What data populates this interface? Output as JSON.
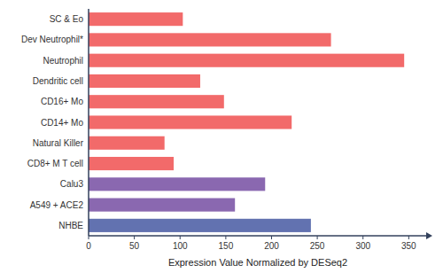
{
  "chart_data": {
    "type": "bar",
    "orientation": "horizontal",
    "categories": [
      "NHBE",
      "A549 + ACE2",
      "Calu3",
      "CD8+ M T cell",
      "Natural Killer",
      "CD14+ Mo",
      "CD16+ Mo",
      "Dendritic cell",
      "Neutrophil",
      "Dev Neutrophil*",
      "SC & Eo"
    ],
    "values": [
      243,
      160,
      193,
      93,
      83,
      222,
      148,
      122,
      345,
      265,
      103
    ],
    "colors": [
      "#6272b0",
      "#8a68b0",
      "#8a68b0",
      "#f26a6a",
      "#f26a6a",
      "#f26a6a",
      "#f26a6a",
      "#f26a6a",
      "#f26a6a",
      "#f26a6a",
      "#f26a6a"
    ],
    "xlabel": "Expression Value Normalized by DESeq2",
    "xlim": [
      0,
      370
    ],
    "xticks": [
      0,
      50,
      100,
      150,
      200,
      250,
      300,
      350
    ]
  }
}
